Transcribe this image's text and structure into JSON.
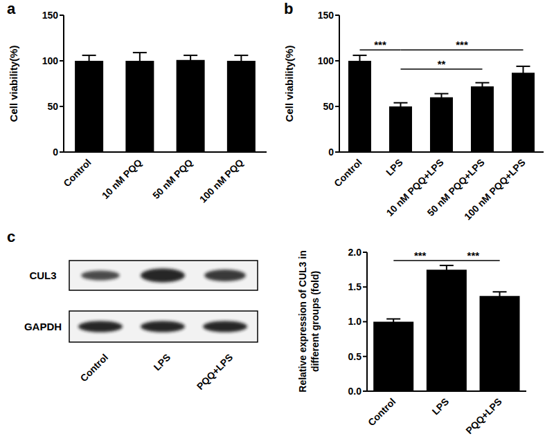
{
  "panel_labels": [
    "a",
    "b",
    "c"
  ],
  "chart_data": [
    {
      "type": "bar",
      "y_label": "Cell viability(%)",
      "categories": [
        "Control",
        "10 nM PQQ",
        "50 nM PQQ",
        "100 nM PQQ"
      ],
      "values": [
        100,
        100,
        101,
        100
      ],
      "errors": [
        6,
        9,
        5,
        6
      ],
      "color": "#000000",
      "ylim": [
        0,
        150
      ],
      "yticks": [
        0,
        50,
        100,
        150
      ],
      "grid": false
    },
    {
      "type": "bar",
      "y_label": "Cell viability(%)",
      "categories": [
        "Control",
        "LPS",
        "10 nM PQQ+LPS",
        "50 nM PQQ+LPS",
        "100 nM PQQ+LPS"
      ],
      "values": [
        100,
        50,
        60,
        72,
        87
      ],
      "errors": [
        6,
        4,
        4,
        4,
        7
      ],
      "color": "#000000",
      "ylim": [
        0,
        150
      ],
      "yticks": [
        0,
        50,
        100,
        150
      ],
      "grid": false,
      "annotations": [
        {
          "from": "Control",
          "to": "LPS",
          "y": 112,
          "label": "***"
        },
        {
          "from": "LPS",
          "to": "100 nM PQQ+LPS",
          "y": 112,
          "label": "***"
        },
        {
          "from": "LPS",
          "to": "50 nM PQQ+LPS",
          "y": 91,
          "label": "**"
        }
      ]
    },
    {
      "type": "bar",
      "y_label": "Relative expression of CUL3 in\ndifferent groups (fold)",
      "categories": [
        "Control",
        "LPS",
        "PQQ+LPS"
      ],
      "values": [
        1.0,
        1.75,
        1.37
      ],
      "errors": [
        0.04,
        0.06,
        0.06
      ],
      "color": "#000000",
      "ylim": [
        0,
        2
      ],
      "yticks": [
        {
          "value": 0,
          "label": "0.0"
        },
        {
          "value": 0.5,
          "label": "0.5"
        },
        {
          "value": 1,
          "label": "1.0"
        },
        {
          "value": 1.5,
          "label": "1.5"
        },
        {
          "value": 2,
          "label": "2.0"
        }
      ],
      "grid": false,
      "annotations": [
        {
          "from": "Control",
          "to": "LPS",
          "y": 1.88,
          "label": "***"
        },
        {
          "from": "LPS",
          "to": "PQQ+LPS",
          "y": 1.88,
          "label": "***"
        }
      ]
    }
  ],
  "blot": {
    "rows": [
      "CUL3",
      "GAPDH"
    ],
    "lanes": [
      "Control",
      "LPS",
      "PQQ+LPS"
    ]
  }
}
